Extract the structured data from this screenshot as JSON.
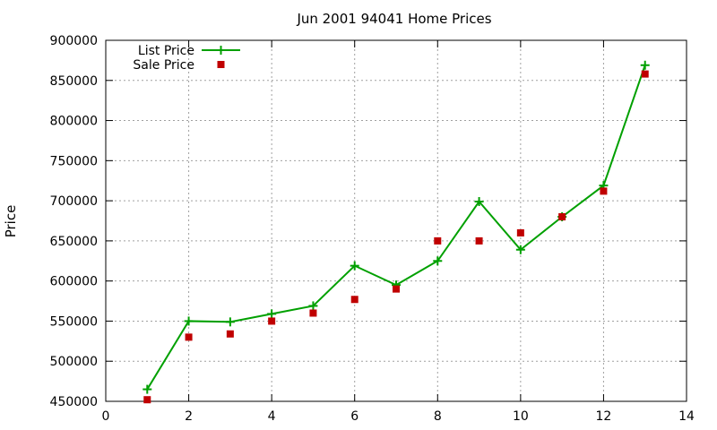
{
  "chart_data": {
    "type": "line",
    "title": "Jun 2001 94041 Home Prices",
    "xlabel": "",
    "ylabel": "Price",
    "xlim": [
      0,
      14
    ],
    "ylim": [
      450000,
      900000
    ],
    "x_ticks": [
      "0",
      "2",
      "4",
      "6",
      "8",
      "10",
      "12",
      "14"
    ],
    "y_ticks": [
      "450000",
      "500000",
      "550000",
      "600000",
      "650000",
      "700000",
      "750000",
      "800000",
      "850000",
      "900000"
    ],
    "grid": true,
    "legend_position": "top-left",
    "series": [
      {
        "name": "List Price",
        "style": "line-with-plus-markers",
        "color": "#00a000",
        "x": [
          1,
          2,
          3,
          4,
          5,
          6,
          7,
          8,
          9,
          10,
          11,
          12,
          13
        ],
        "values": [
          465000,
          550000,
          549000,
          559000,
          569000,
          619000,
          595000,
          625000,
          699000,
          639000,
          680000,
          719000,
          869000
        ]
      },
      {
        "name": "Sale Price",
        "style": "square-markers",
        "color": "#c00000",
        "x": [
          1,
          2,
          3,
          4,
          5,
          6,
          7,
          8,
          9,
          10,
          11,
          12,
          13
        ],
        "values": [
          452000,
          530000,
          534000,
          550000,
          560000,
          577000,
          590000,
          650000,
          650000,
          660000,
          680000,
          712000,
          858000
        ]
      }
    ]
  }
}
